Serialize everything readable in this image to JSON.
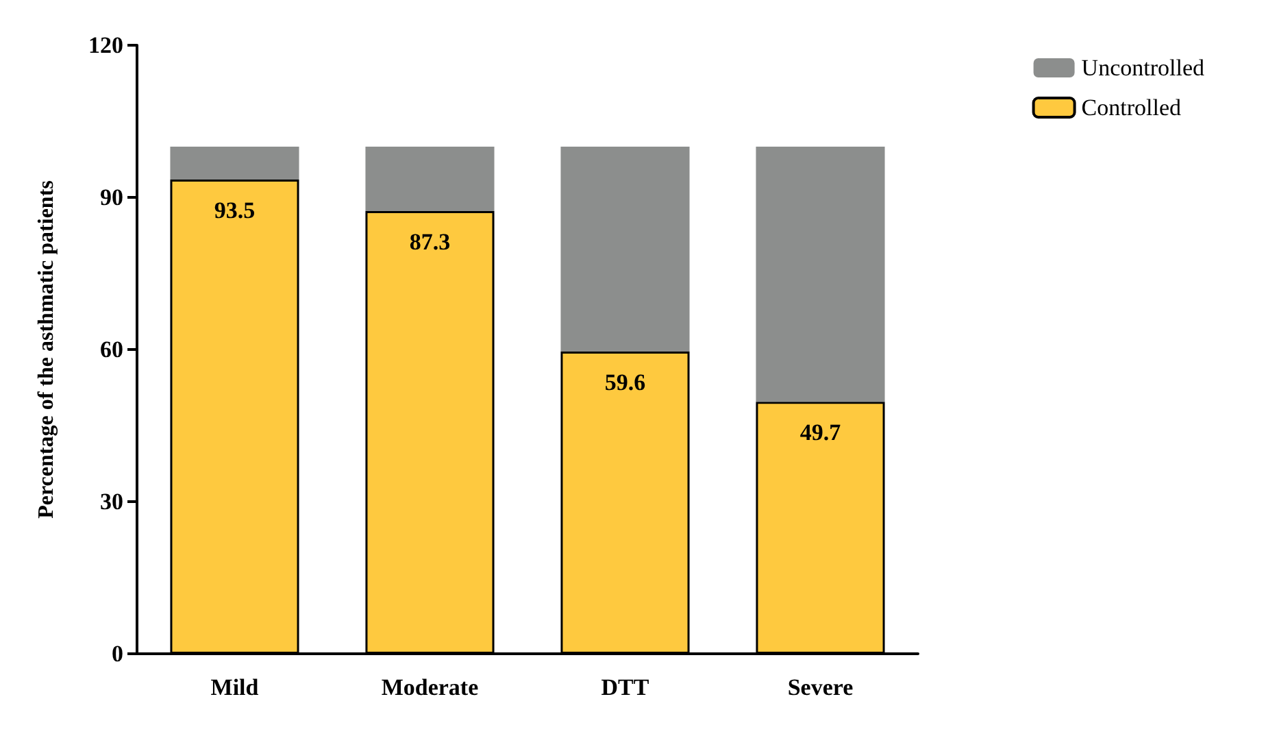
{
  "chart_data": {
    "type": "bar",
    "stacked": true,
    "ylabel": "Percentage of the asthmatic patients",
    "categories": [
      "Mild",
      "Moderate",
      "DTT",
      "Severe"
    ],
    "ylim": [
      0,
      120
    ],
    "yticks": [
      0,
      30,
      60,
      90,
      120
    ],
    "grid": false,
    "legend": "top right",
    "series": [
      {
        "name": "Controlled",
        "color": "#fec93f",
        "values": [
          93.5,
          87.3,
          59.6,
          49.7
        ],
        "value_labels": [
          "93.5",
          "87.3",
          "59.6",
          "49.7"
        ]
      },
      {
        "name": "Uncontrolled",
        "color": "#8c8e8d",
        "values": [
          6.5,
          12.7,
          40.4,
          50.3
        ]
      }
    ]
  }
}
